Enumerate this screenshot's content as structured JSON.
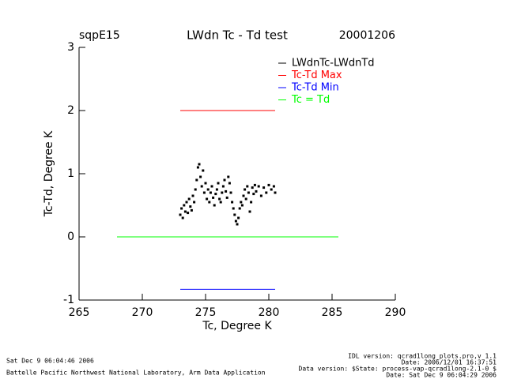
{
  "chart_data": {
    "type": "scatter",
    "title": "LWdn Tc - Td test",
    "site": "sqpE15",
    "date": "20001206",
    "xlabel": "Tc, Degree K",
    "ylabel": "Tc-Td, Degree K",
    "xlim": [
      265,
      290
    ],
    "xticks": [
      265,
      270,
      275,
      280,
      285,
      290
    ],
    "ylim": [
      -1,
      3
    ],
    "yticks": [
      -1,
      0,
      1,
      2,
      3
    ],
    "series": [
      {
        "name": "LWdnTc-LWdnTd",
        "color": "#000000",
        "mode": "points",
        "x": [
          273.0,
          273.1,
          273.2,
          273.3,
          273.4,
          273.5,
          273.6,
          273.7,
          273.8,
          273.9,
          274.0,
          274.1,
          274.2,
          274.3,
          274.4,
          274.5,
          274.6,
          274.7,
          274.8,
          274.9,
          275.0,
          275.1,
          275.2,
          275.3,
          275.4,
          275.5,
          275.6,
          275.7,
          275.8,
          275.9,
          276.0,
          276.1,
          276.2,
          276.3,
          276.4,
          276.5,
          276.6,
          276.7,
          276.8,
          276.9,
          277.0,
          277.1,
          277.2,
          277.3,
          277.4,
          277.5,
          277.6,
          277.7,
          277.8,
          277.9,
          278.0,
          278.1,
          278.2,
          278.3,
          278.4,
          278.5,
          278.6,
          278.7,
          278.8,
          278.9,
          279.0,
          279.2,
          279.4,
          279.6,
          279.8,
          280.0,
          280.2,
          280.4,
          280.5
        ],
        "values": [
          0.35,
          0.45,
          0.3,
          0.5,
          0.4,
          0.55,
          0.38,
          0.6,
          0.48,
          0.42,
          0.65,
          0.55,
          0.75,
          0.9,
          1.1,
          1.15,
          0.95,
          0.8,
          1.05,
          0.7,
          0.85,
          0.6,
          0.75,
          0.55,
          0.7,
          0.8,
          0.62,
          0.5,
          0.68,
          0.75,
          0.85,
          0.6,
          0.55,
          0.7,
          0.8,
          0.9,
          0.72,
          0.62,
          0.95,
          0.85,
          0.7,
          0.55,
          0.45,
          0.35,
          0.25,
          0.2,
          0.3,
          0.45,
          0.55,
          0.5,
          0.65,
          0.75,
          0.6,
          0.8,
          0.7,
          0.4,
          0.55,
          0.78,
          0.68,
          0.82,
          0.72,
          0.8,
          0.65,
          0.78,
          0.7,
          0.82,
          0.75,
          0.8,
          0.7
        ]
      },
      {
        "name": "Tc-Td Max",
        "color": "#ff0000",
        "mode": "line",
        "x": [
          273,
          280.5
        ],
        "values": [
          2,
          2
        ]
      },
      {
        "name": "Tc-Td Min",
        "color": "#0000ff",
        "mode": "line",
        "x": [
          273,
          280.5
        ],
        "values": [
          -0.83,
          -0.83
        ]
      },
      {
        "name": "Tc = Td",
        "color": "#00ff00",
        "mode": "line",
        "x": [
          268,
          285.5
        ],
        "values": [
          0,
          0
        ]
      }
    ],
    "footer_left": [
      "Sat Dec  9 06:04:46 2006",
      "Battelle Pacific Northwest National Laboratory, Arm Data Application"
    ],
    "footer_right": [
      "IDL version: qcrad1long_plots.pro,v 1.1",
      "Date: 2006/12/01 16:37:51",
      "Data version: $State: process-vap-qcrad1long-2.1-0 $",
      "Date: Sat Dec  9 06:04:29 2006"
    ]
  }
}
